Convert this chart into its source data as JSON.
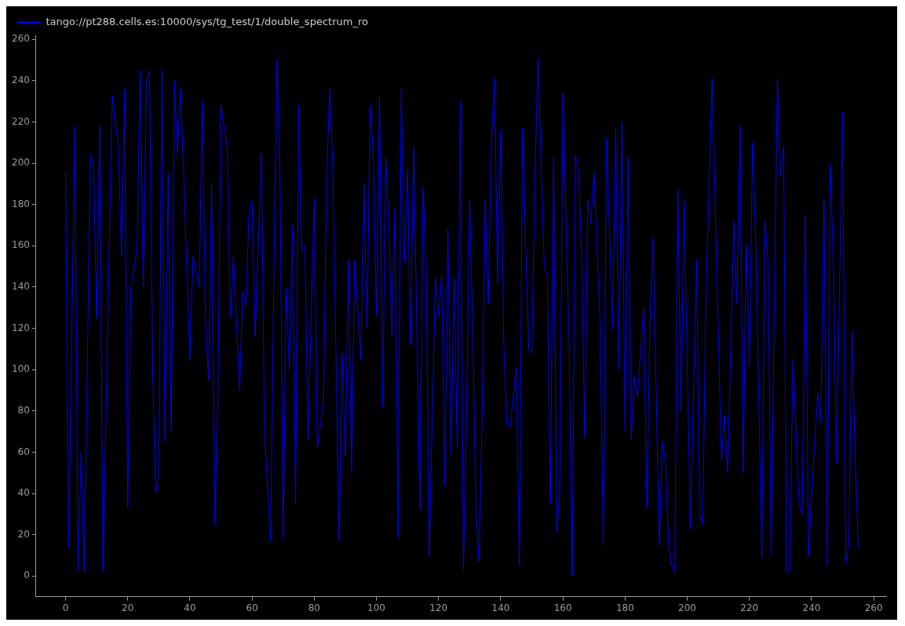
{
  "chart_data": {
    "type": "line",
    "x": [
      0,
      1,
      3,
      4,
      5,
      6,
      8,
      9,
      10,
      11,
      12,
      13,
      15,
      17,
      18,
      19,
      20,
      21,
      23,
      24,
      25,
      26,
      27,
      28,
      29,
      30,
      31,
      32,
      33,
      34,
      35,
      36,
      37,
      38,
      40,
      41,
      43,
      44,
      45,
      46,
      47,
      48,
      49,
      50,
      52,
      53,
      54,
      56,
      57,
      58,
      59,
      60,
      61,
      63,
      64,
      66,
      67,
      68,
      69,
      70,
      71,
      72,
      73,
      74,
      75,
      76,
      77,
      78,
      80,
      81,
      83,
      84,
      85,
      86,
      88,
      89,
      90,
      91,
      92,
      93,
      95,
      96,
      97,
      98,
      99,
      100,
      101,
      102,
      103,
      104,
      105,
      106,
      107,
      108,
      109,
      110,
      111,
      112,
      114,
      115,
      116,
      117,
      119,
      120,
      121,
      122,
      123,
      124,
      125,
      126,
      127,
      128,
      129,
      130,
      131,
      132,
      133,
      134,
      135,
      136,
      137,
      138,
      139,
      140,
      141,
      142,
      143,
      145,
      146,
      147,
      149,
      150,
      151,
      152,
      154,
      155,
      156,
      157,
      158,
      159,
      160,
      162,
      163,
      164,
      165,
      166,
      167,
      168,
      169,
      170,
      172,
      173,
      174,
      176,
      177,
      178,
      179,
      180,
      181,
      182,
      183,
      184,
      186,
      187,
      188,
      189,
      191,
      192,
      193,
      194,
      195,
      196,
      197,
      198,
      199,
      201,
      203,
      204,
      205,
      206,
      208,
      210,
      211,
      212,
      213,
      215,
      216,
      217,
      218,
      219,
      220,
      221,
      222,
      224,
      225,
      226,
      227,
      228,
      229,
      230,
      231,
      232,
      233,
      234,
      236,
      237,
      238,
      239,
      241,
      242,
      243,
      244,
      245,
      246,
      247,
      248,
      250,
      251,
      252,
      253,
      254,
      255
    ],
    "series": [
      {
        "name": "tango://pt288.cells.es:10000/sys/tg_test/1/double_spectrum_ro",
        "color": "#0000ff",
        "values": [
          196,
          14,
          218,
          2,
          60,
          2,
          204,
          200,
          125,
          218,
          2,
          78,
          233,
          208,
          155,
          236,
          33,
          140,
          158,
          245,
          140,
          240,
          245,
          100,
          40,
          50,
          245,
          65,
          195,
          70,
          240,
          205,
          236,
          194,
          105,
          155,
          140,
          230,
          125,
          95,
          190,
          25,
          87,
          228,
          208,
          125,
          155,
          90,
          138,
          131,
          176,
          182,
          116,
          205,
          70,
          17,
          145,
          250,
          194,
          18,
          140,
          100,
          170,
          35,
          228,
          158,
          160,
          66,
          183,
          62,
          85,
          195,
          236,
          197,
          17,
          108,
          58,
          153,
          50,
          153,
          105,
          190,
          120,
          228,
          205,
          126,
          233,
          82,
          203,
          172,
          116,
          178,
          19,
          236,
          152,
          197,
          112,
          208,
          32,
          188,
          152,
          10,
          145,
          126,
          146,
          44,
          168,
          58,
          145,
          62,
          230,
          3,
          80,
          182,
          120,
          33,
          7,
          76,
          182,
          132,
          210,
          241,
          142,
          216,
          112,
          73,
          72,
          101,
          5,
          217,
          110,
          108,
          194,
          251,
          150,
          146,
          35,
          203,
          22,
          40,
          234,
          112,
          0,
          204,
          197,
          158,
          67,
          182,
          171,
          196,
          120,
          15,
          212,
          120,
          217,
          100,
          220,
          70,
          203,
          66,
          96,
          87,
          130,
          33,
          123,
          164,
          15,
          65,
          55,
          15,
          5,
          2,
          187,
          80,
          182,
          23,
          153,
          30,
          25,
          135,
          241,
          118,
          56,
          78,
          50,
          172,
          132,
          218,
          50,
          160,
          102,
          210,
          164,
          9,
          172,
          152,
          10,
          130,
          241,
          194,
          208,
          2,
          2,
          105,
          35,
          30,
          175,
          10,
          65,
          88,
          75,
          182,
          5,
          200,
          152,
          55,
          225,
          6,
          16,
          119,
          60,
          14
        ]
      }
    ],
    "xlim": [
      -9.5,
      264
    ],
    "ylim": [
      -10,
      262
    ],
    "xticks": [
      0,
      20,
      40,
      60,
      80,
      100,
      120,
      140,
      160,
      180,
      200,
      220,
      240,
      260
    ],
    "yticks": [
      0,
      20,
      40,
      60,
      80,
      100,
      120,
      140,
      160,
      180,
      200,
      220,
      240,
      260
    ],
    "grid": false,
    "legend": "top left",
    "marker": "none",
    "line_style": "solid"
  }
}
